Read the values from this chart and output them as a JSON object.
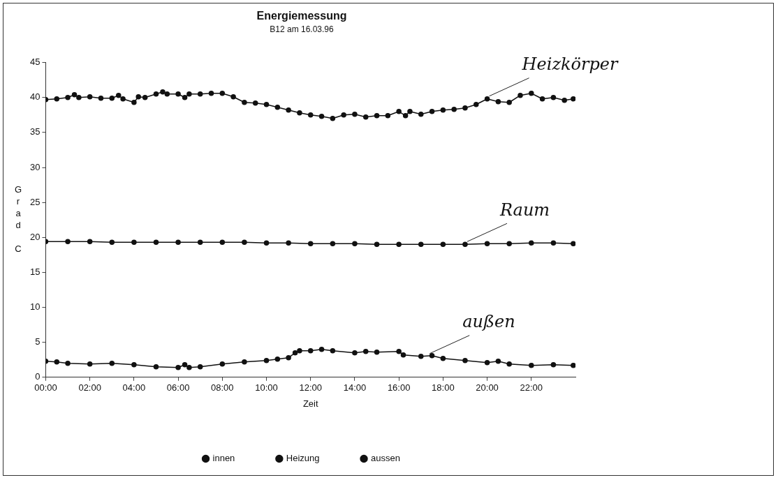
{
  "chart_data": {
    "type": "line",
    "title": "Energiemessung",
    "subtitle": "B12 am 16.03.96",
    "xlabel": "Zeit",
    "ylabel": "Grad C",
    "xlim": [
      0,
      24
    ],
    "xticks": [
      {
        "value": 0,
        "label": "00:00"
      },
      {
        "value": 2,
        "label": "02:00"
      },
      {
        "value": 4,
        "label": "04:00"
      },
      {
        "value": 6,
        "label": "06:00"
      },
      {
        "value": 8,
        "label": "08:00"
      },
      {
        "value": 10,
        "label": "10:00"
      },
      {
        "value": 12,
        "label": "12:00"
      },
      {
        "value": 14,
        "label": "14:00"
      },
      {
        "value": 16,
        "label": "16:00"
      },
      {
        "value": 18,
        "label": "18:00"
      },
      {
        "value": 20,
        "label": "20:00"
      },
      {
        "value": 22,
        "label": "22:00"
      }
    ],
    "ylim": [
      0,
      45
    ],
    "yticks": [
      0,
      5,
      10,
      15,
      20,
      25,
      30,
      35,
      40,
      45
    ],
    "grid": false,
    "legend": "bottom",
    "marker": "circle",
    "line_style": "solid",
    "series": [
      {
        "name": "innen",
        "color": "#111111",
        "x": [
          0,
          1,
          2,
          3,
          4,
          5,
          6,
          7,
          8,
          9,
          10,
          11,
          12,
          13,
          14,
          15,
          16,
          17,
          18,
          19,
          20,
          21,
          22,
          23,
          23.9
        ],
        "values": [
          19.4,
          19.4,
          19.4,
          19.3,
          19.3,
          19.3,
          19.3,
          19.3,
          19.3,
          19.3,
          19.2,
          19.2,
          19.1,
          19.1,
          19.1,
          19.0,
          19.0,
          19.0,
          19.0,
          19.0,
          19.1,
          19.1,
          19.2,
          19.2,
          19.1
        ]
      },
      {
        "name": "Heizung",
        "color": "#111111",
        "x": [
          0,
          0.5,
          1,
          1.3,
          1.5,
          2,
          2.5,
          3,
          3.3,
          3.5,
          4,
          4.2,
          4.5,
          5,
          5.3,
          5.5,
          6,
          6.3,
          6.5,
          7,
          7.5,
          8,
          8.5,
          9,
          9.5,
          10,
          10.5,
          11,
          11.5,
          12,
          12.5,
          13,
          13.5,
          14,
          14.5,
          15,
          15.5,
          16,
          16.3,
          16.5,
          17,
          17.5,
          18,
          18.5,
          19,
          19.5,
          20,
          20.5,
          21,
          21.5,
          22,
          22.5,
          23,
          23.5,
          23.9
        ],
        "values": [
          39.7,
          39.8,
          40.0,
          40.4,
          40.0,
          40.1,
          39.9,
          39.9,
          40.3,
          39.8,
          39.3,
          40.1,
          40.0,
          40.5,
          40.8,
          40.5,
          40.5,
          40.0,
          40.5,
          40.5,
          40.6,
          40.6,
          40.1,
          39.3,
          39.2,
          39.0,
          38.6,
          38.2,
          37.8,
          37.5,
          37.3,
          37.0,
          37.5,
          37.6,
          37.2,
          37.4,
          37.4,
          38.0,
          37.4,
          38.0,
          37.6,
          38.0,
          38.2,
          38.3,
          38.5,
          39.0,
          39.8,
          39.4,
          39.3,
          40.3,
          40.6,
          39.8,
          40.0,
          39.6,
          39.8
        ]
      },
      {
        "name": "aussen",
        "color": "#111111",
        "x": [
          0,
          0.5,
          1,
          2,
          3,
          4,
          5,
          6,
          6.3,
          6.5,
          7,
          8,
          9,
          10,
          10.5,
          11,
          11.3,
          11.5,
          12,
          12.5,
          13,
          14,
          14.5,
          15,
          16,
          16.2,
          17,
          17.5,
          18,
          19,
          20,
          20.5,
          21,
          22,
          23,
          23.9
        ],
        "values": [
          2.3,
          2.2,
          2.0,
          1.9,
          2.0,
          1.8,
          1.5,
          1.4,
          1.8,
          1.4,
          1.5,
          1.9,
          2.2,
          2.4,
          2.6,
          2.8,
          3.5,
          3.8,
          3.8,
          4.0,
          3.8,
          3.5,
          3.7,
          3.6,
          3.7,
          3.2,
          3.0,
          3.1,
          2.7,
          2.4,
          2.1,
          2.3,
          1.9,
          1.7,
          1.8,
          1.7
        ]
      }
    ],
    "annotations": [
      {
        "text": "Heizkörper",
        "x": 20,
        "y": 39.8
      },
      {
        "text": "Raum",
        "x": 19,
        "y": 19.0
      },
      {
        "text": "außen",
        "x": 17.3,
        "y": 3.0
      }
    ]
  }
}
